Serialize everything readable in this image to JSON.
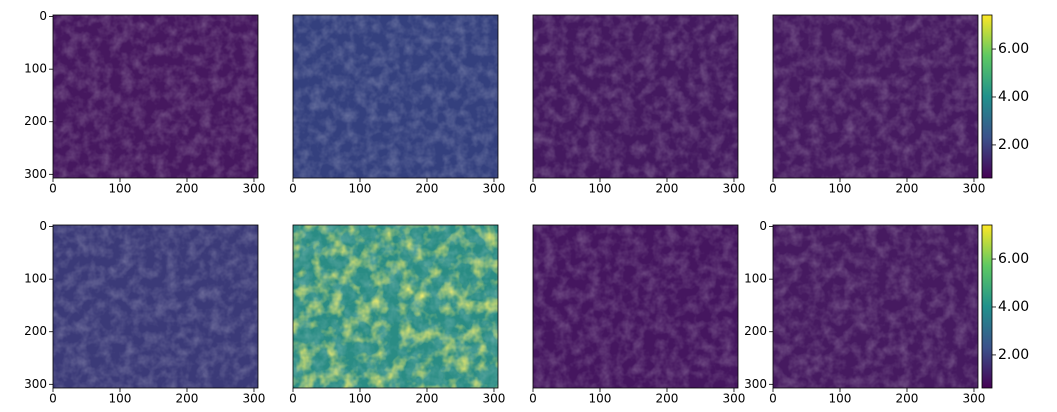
{
  "chart_data": [
    {
      "type": "image",
      "colormap": "viridis",
      "color": "#46185f",
      "xlim": [
        0,
        306
      ],
      "ylim": [
        -3,
        307
      ],
      "y_inverted": true,
      "xticks": [
        0,
        100,
        200,
        300
      ],
      "yticks": [
        0,
        100,
        200,
        300
      ]
    },
    {
      "type": "image",
      "colormap": "viridis",
      "color": "#34407e",
      "xlim": [
        0,
        306
      ],
      "ylim": [
        -3,
        307
      ],
      "y_inverted": true,
      "xticks": [
        0,
        100,
        200,
        300
      ]
    },
    {
      "type": "image",
      "colormap": "viridis",
      "color": "#44195f",
      "xlim": [
        0,
        306
      ],
      "ylim": [
        -3,
        307
      ],
      "y_inverted": true,
      "xticks": [
        0,
        100,
        200,
        300
      ]
    },
    {
      "type": "image",
      "colormap": "viridis",
      "color": "#461a60",
      "xlim": [
        0,
        306
      ],
      "ylim": [
        -3,
        307
      ],
      "y_inverted": true,
      "xticks": [
        0,
        100,
        200,
        300
      ],
      "colorbar": {
        "lim": [
          0.62,
          7.42
        ],
        "ticks": [
          {
            "value": 2,
            "label": "2.00"
          },
          {
            "value": 4,
            "label": "4.00"
          },
          {
            "value": 6,
            "label": "6.00"
          }
        ]
      }
    },
    {
      "type": "image",
      "colormap": "viridis",
      "color": "#3b3a78",
      "xlim": [
        0,
        306
      ],
      "ylim": [
        -3,
        307
      ],
      "y_inverted": true,
      "xticks": [
        0,
        100,
        200,
        300
      ],
      "yticks": [
        0,
        100,
        200,
        300
      ]
    },
    {
      "type": "image",
      "colormap": "viridis",
      "color": "#2a8c84",
      "xlim": [
        0,
        306
      ],
      "ylim": [
        -3,
        307
      ],
      "y_inverted": true,
      "xticks": [
        0,
        100,
        200,
        300
      ]
    },
    {
      "type": "image",
      "colormap": "viridis",
      "color": "#45165f",
      "xlim": [
        0,
        306
      ],
      "ylim": [
        -3,
        307
      ],
      "y_inverted": true,
      "xticks": [
        0,
        100,
        200,
        300
      ]
    },
    {
      "type": "image",
      "colormap": "viridis",
      "color": "#461a60",
      "xlim": [
        0,
        306
      ],
      "ylim": [
        -3,
        307
      ],
      "y_inverted": true,
      "xticks": [
        0,
        100,
        200,
        300
      ],
      "yticks": [
        0,
        100,
        200,
        300
      ],
      "colorbar": {
        "lim": [
          0.62,
          7.42
        ],
        "ticks": [
          {
            "value": 2,
            "label": "2.00"
          },
          {
            "value": 4,
            "label": "4.00"
          },
          {
            "value": 6,
            "label": "6.00"
          }
        ]
      }
    }
  ]
}
